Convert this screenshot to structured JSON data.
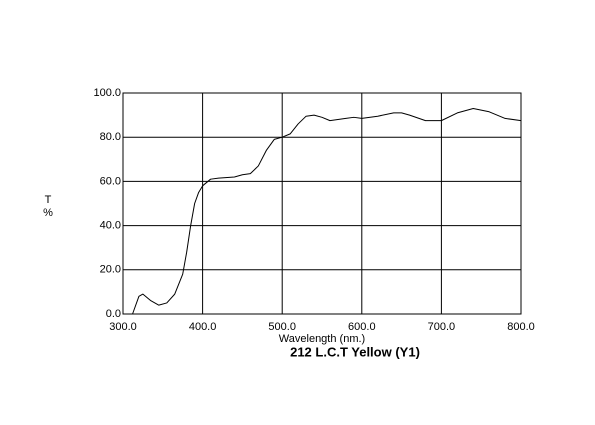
{
  "chart_data": {
    "type": "line",
    "title": "212 L.C.T Yellow (Y1)",
    "xlabel": "Wavelength (nm.)",
    "ylabel": [
      "T",
      "%"
    ],
    "xlim": [
      300,
      800
    ],
    "ylim": [
      0,
      100
    ],
    "xticks": [
      {
        "value": 300,
        "label": "300.0"
      },
      {
        "value": 400,
        "label": "400.0"
      },
      {
        "value": 500,
        "label": "500.0"
      },
      {
        "value": 600,
        "label": "600.0"
      },
      {
        "value": 700,
        "label": "700.0"
      },
      {
        "value": 800,
        "label": "800.0"
      }
    ],
    "yticks": [
      {
        "value": 0,
        "label": "0.0"
      },
      {
        "value": 20,
        "label": "20.0"
      },
      {
        "value": 40,
        "label": "40.0"
      },
      {
        "value": 60,
        "label": "60.0"
      },
      {
        "value": 80,
        "label": "80.0"
      },
      {
        "value": 100,
        "label": "100.0"
      }
    ],
    "grid": true,
    "color": "#000000",
    "x": [
      312,
      320,
      325,
      335,
      345,
      355,
      365,
      375,
      380,
      385,
      390,
      395,
      400,
      410,
      420,
      440,
      450,
      460,
      470,
      480,
      490,
      500,
      510,
      520,
      530,
      540,
      550,
      560,
      580,
      590,
      600,
      620,
      640,
      650,
      660,
      680,
      700,
      720,
      740,
      760,
      780,
      800
    ],
    "values": [
      0,
      8,
      9,
      6,
      4,
      5,
      9,
      18,
      28,
      40,
      50,
      55,
      58,
      61,
      61.5,
      62,
      63,
      63.5,
      67,
      74,
      79,
      80,
      81.5,
      86,
      89.5,
      90,
      89,
      87.5,
      88.5,
      89,
      88.5,
      89.5,
      91,
      91,
      90,
      87.5,
      87.5,
      91,
      93,
      91.5,
      88.5,
      87.5
    ]
  }
}
